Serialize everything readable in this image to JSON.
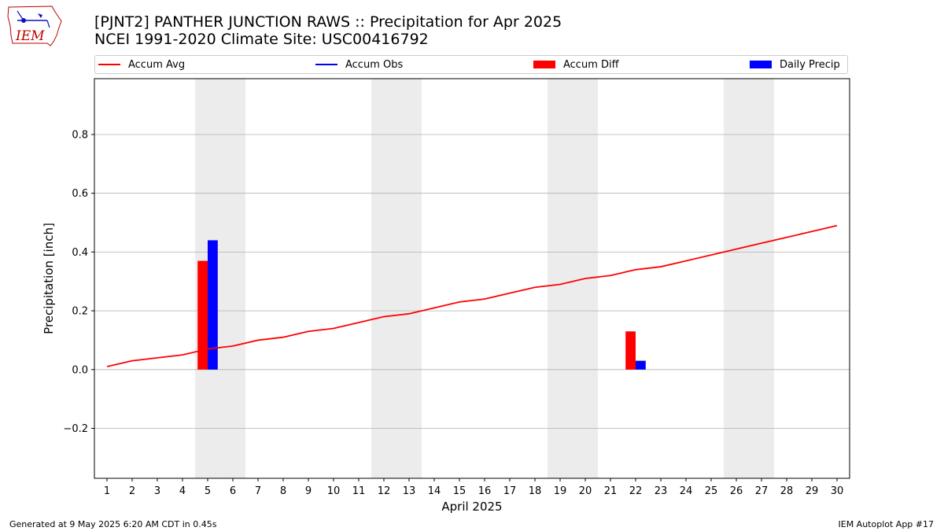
{
  "logo": {
    "text": "IEM"
  },
  "header": {
    "title_line1": "[PJNT2] PANTHER JUNCTION RAWS :: Precipitation for Apr 2025",
    "title_line2": "NCEI 1991-2020 Climate Site: USC00416792"
  },
  "footer": {
    "generated": "Generated at 9 May 2025 6:20 AM CDT in 0.45s",
    "app": "IEM Autoplot App #17"
  },
  "legend": {
    "items": [
      {
        "label": "Accum Avg",
        "color": "#ff0000",
        "kind": "line"
      },
      {
        "label": "Accum Obs",
        "color": "#0000ff",
        "kind": "line"
      },
      {
        "label": "Accum Diff",
        "color": "#ff0000",
        "kind": "bar"
      },
      {
        "label": "Daily Precip",
        "color": "#0000ff",
        "kind": "bar"
      }
    ]
  },
  "chart_data": {
    "type": "line",
    "xlabel": "April 2025",
    "ylabel": "Precipitation [inch]",
    "xlim": [
      0.5,
      30.5
    ],
    "ylim": [
      -0.37,
      0.99
    ],
    "yticks": [
      -0.2,
      0.0,
      0.2,
      0.4,
      0.6,
      0.8
    ],
    "ytick_labels": [
      "−0.2",
      "0.0",
      "0.2",
      "0.4",
      "0.6",
      "0.8"
    ],
    "xticks": [
      1,
      2,
      3,
      4,
      5,
      6,
      7,
      8,
      9,
      10,
      11,
      12,
      13,
      14,
      15,
      16,
      17,
      18,
      19,
      20,
      21,
      22,
      23,
      24,
      25,
      26,
      27,
      28,
      29,
      30
    ],
    "grid": "horizontal",
    "weekend_spans": [
      [
        4.5,
        6.5
      ],
      [
        11.5,
        13.5
      ],
      [
        18.5,
        20.5
      ],
      [
        25.5,
        27.5
      ]
    ],
    "series": [
      {
        "name": "Accum Avg",
        "kind": "line",
        "color": "#ff0000",
        "x": [
          1,
          2,
          3,
          4,
          5,
          6,
          7,
          8,
          9,
          10,
          11,
          12,
          13,
          14,
          15,
          16,
          17,
          18,
          19,
          20,
          21,
          22,
          23,
          24,
          25,
          26,
          27,
          28,
          29,
          30
        ],
        "values": [
          0.01,
          0.03,
          0.04,
          0.05,
          0.07,
          0.08,
          0.1,
          0.11,
          0.13,
          0.14,
          0.16,
          0.18,
          0.19,
          0.21,
          0.23,
          0.24,
          0.26,
          0.28,
          0.29,
          0.31,
          0.32,
          0.34,
          0.35,
          0.37,
          0.39,
          0.41,
          0.43,
          0.45,
          0.47,
          0.49
        ]
      },
      {
        "name": "Accum Diff",
        "kind": "bar",
        "color": "#ff0000",
        "x": [
          5,
          22
        ],
        "values": [
          0.37,
          0.13
        ]
      },
      {
        "name": "Daily Precip",
        "kind": "bar",
        "color": "#0000ff",
        "x": [
          5,
          22
        ],
        "values": [
          0.44,
          0.03
        ]
      }
    ]
  }
}
